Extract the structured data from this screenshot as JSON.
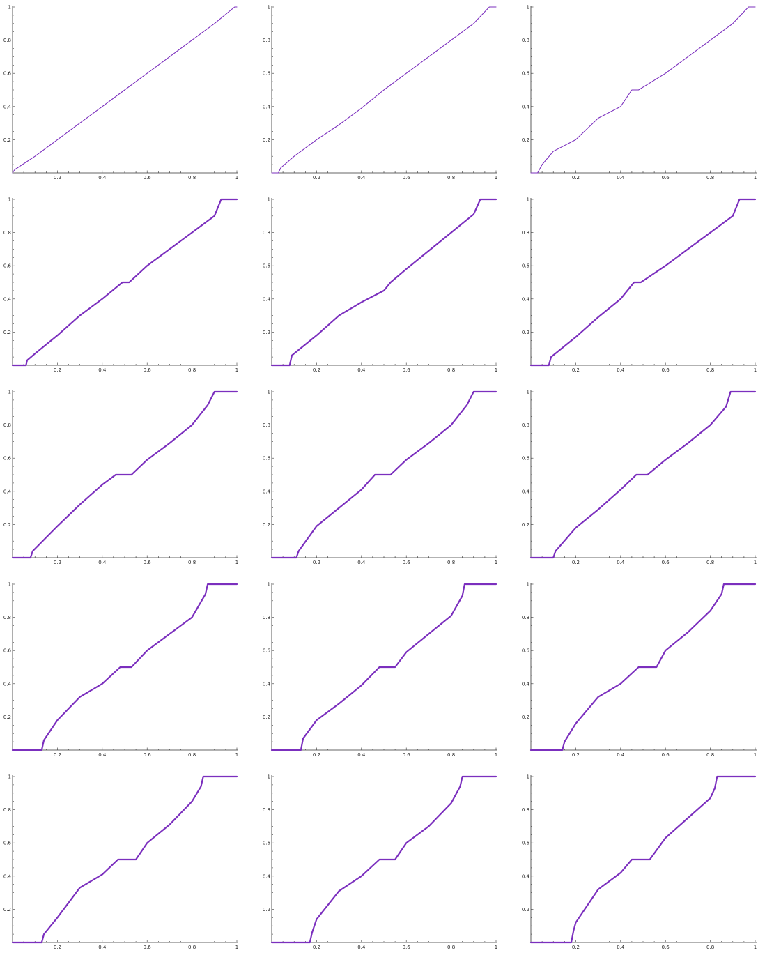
{
  "colors": {
    "line": "#7b2fbe",
    "axis": "#333333"
  },
  "chart_data": [
    {
      "type": "line",
      "xlim": [
        0,
        1
      ],
      "ylim": [
        0,
        1
      ],
      "xticks": [
        "0.2",
        "0.4",
        "0.6",
        "0.8",
        "1"
      ],
      "yticks": [
        "0.2",
        "0.4",
        "0.6",
        "0.8",
        "1"
      ],
      "grid": false,
      "x": [
        0,
        0.01,
        0.1,
        0.2,
        0.3,
        0.4,
        0.5,
        0.6,
        0.7,
        0.8,
        0.9,
        0.99,
        1
      ],
      "y": [
        0,
        0.02,
        0.1,
        0.2,
        0.3,
        0.4,
        0.5,
        0.6,
        0.7,
        0.8,
        0.9,
        1,
        1
      ]
    },
    {
      "type": "line",
      "xlim": [
        0,
        1
      ],
      "ylim": [
        0,
        1
      ],
      "xticks": [
        "0.2",
        "0.4",
        "0.6",
        "0.8",
        "1"
      ],
      "yticks": [
        "0.2",
        "0.4",
        "0.6",
        "0.8",
        "1"
      ],
      "grid": false,
      "x": [
        0,
        0.03,
        0.04,
        0.1,
        0.2,
        0.3,
        0.4,
        0.5,
        0.6,
        0.7,
        0.8,
        0.9,
        0.97,
        1
      ],
      "y": [
        0,
        0,
        0.03,
        0.1,
        0.2,
        0.29,
        0.39,
        0.5,
        0.6,
        0.7,
        0.8,
        0.9,
        1,
        1
      ]
    },
    {
      "type": "line",
      "xlim": [
        0,
        1
      ],
      "ylim": [
        0,
        1
      ],
      "xticks": [
        "0.2",
        "0.4",
        "0.6",
        "0.8",
        "1"
      ],
      "yticks": [
        "0.2",
        "0.4",
        "0.6",
        "0.8",
        "1"
      ],
      "grid": false,
      "x": [
        0,
        0.03,
        0.05,
        0.1,
        0.2,
        0.3,
        0.4,
        0.45,
        0.48,
        0.6,
        0.7,
        0.8,
        0.9,
        0.97,
        1
      ],
      "y": [
        0,
        0,
        0.05,
        0.13,
        0.2,
        0.33,
        0.4,
        0.5,
        0.5,
        0.6,
        0.7,
        0.8,
        0.9,
        1,
        1
      ]
    },
    {
      "type": "line",
      "xlim": [
        0,
        1
      ],
      "ylim": [
        0,
        1
      ],
      "xticks": [
        "0.2",
        "0.4",
        "0.6",
        "0.8",
        "1"
      ],
      "yticks": [
        "0.2",
        "0.4",
        "0.6",
        "0.8",
        "1"
      ],
      "grid": false,
      "x": [
        0,
        0.06,
        0.065,
        0.1,
        0.2,
        0.3,
        0.4,
        0.49,
        0.52,
        0.6,
        0.7,
        0.8,
        0.9,
        0.93,
        1
      ],
      "y": [
        0,
        0,
        0.03,
        0.07,
        0.18,
        0.3,
        0.4,
        0.5,
        0.5,
        0.6,
        0.7,
        0.8,
        0.9,
        1,
        1
      ]
    },
    {
      "type": "line",
      "xlim": [
        0,
        1
      ],
      "ylim": [
        0,
        1
      ],
      "xticks": [
        "0.2",
        "0.4",
        "0.6",
        "0.8",
        "1"
      ],
      "yticks": [
        "0.2",
        "0.4",
        "0.6",
        "0.8",
        "1"
      ],
      "grid": false,
      "x": [
        0,
        0.08,
        0.09,
        0.2,
        0.3,
        0.4,
        0.5,
        0.53,
        0.6,
        0.7,
        0.8,
        0.9,
        0.93,
        1
      ],
      "y": [
        0,
        0,
        0.06,
        0.18,
        0.3,
        0.38,
        0.45,
        0.5,
        0.58,
        0.69,
        0.8,
        0.91,
        1,
        1
      ]
    },
    {
      "type": "line",
      "xlim": [
        0,
        1
      ],
      "ylim": [
        0,
        1
      ],
      "xticks": [
        "0.2",
        "0.4",
        "0.6",
        "0.8",
        "1"
      ],
      "yticks": [
        "0.2",
        "0.4",
        "0.6",
        "0.8",
        "1"
      ],
      "grid": false,
      "x": [
        0,
        0.08,
        0.09,
        0.2,
        0.3,
        0.4,
        0.46,
        0.49,
        0.6,
        0.7,
        0.8,
        0.9,
        0.93,
        1
      ],
      "y": [
        0,
        0,
        0.05,
        0.17,
        0.29,
        0.4,
        0.5,
        0.5,
        0.6,
        0.7,
        0.8,
        0.9,
        1,
        1
      ]
    },
    {
      "type": "line",
      "xlim": [
        0,
        1
      ],
      "ylim": [
        0,
        1
      ],
      "xticks": [
        "0.2",
        "0.4",
        "0.6",
        "0.8",
        "1"
      ],
      "yticks": [
        "0.2",
        "0.4",
        "0.6",
        "0.8",
        "1"
      ],
      "grid": false,
      "x": [
        0,
        0.08,
        0.09,
        0.2,
        0.3,
        0.4,
        0.46,
        0.53,
        0.6,
        0.7,
        0.8,
        0.87,
        0.9,
        1
      ],
      "y": [
        0,
        0,
        0.04,
        0.19,
        0.32,
        0.44,
        0.5,
        0.5,
        0.59,
        0.69,
        0.8,
        0.92,
        1,
        1
      ]
    },
    {
      "type": "line",
      "xlim": [
        0,
        1
      ],
      "ylim": [
        0,
        1
      ],
      "xticks": [
        "0.2",
        "0.4",
        "0.6",
        "0.8",
        "1"
      ],
      "yticks": [
        "0.2",
        "0.4",
        "0.6",
        "0.8",
        "1"
      ],
      "grid": false,
      "x": [
        0,
        0.11,
        0.12,
        0.2,
        0.3,
        0.4,
        0.46,
        0.53,
        0.6,
        0.7,
        0.8,
        0.87,
        0.9,
        1
      ],
      "y": [
        0,
        0,
        0.04,
        0.19,
        0.3,
        0.41,
        0.5,
        0.5,
        0.59,
        0.69,
        0.8,
        0.92,
        1,
        1
      ]
    },
    {
      "type": "line",
      "xlim": [
        0,
        1
      ],
      "ylim": [
        0,
        1
      ],
      "xticks": [
        "0.2",
        "0.4",
        "0.6",
        "0.8",
        "1"
      ],
      "yticks": [
        "0.2",
        "0.4",
        "0.6",
        "0.8",
        "1"
      ],
      "grid": false,
      "x": [
        0,
        0.1,
        0.11,
        0.2,
        0.3,
        0.4,
        0.47,
        0.52,
        0.6,
        0.7,
        0.8,
        0.87,
        0.89,
        1
      ],
      "y": [
        0,
        0,
        0.04,
        0.18,
        0.29,
        0.41,
        0.5,
        0.5,
        0.59,
        0.69,
        0.8,
        0.91,
        1,
        1
      ]
    },
    {
      "type": "line",
      "xlim": [
        0,
        1
      ],
      "ylim": [
        0,
        1
      ],
      "xticks": [
        "0.2",
        "0.4",
        "0.6",
        "0.8",
        "1"
      ],
      "yticks": [
        "0.2",
        "0.4",
        "0.6",
        "0.8",
        "1"
      ],
      "grid": false,
      "x": [
        0,
        0.13,
        0.14,
        0.2,
        0.3,
        0.4,
        0.48,
        0.53,
        0.6,
        0.7,
        0.8,
        0.86,
        0.87,
        1
      ],
      "y": [
        0,
        0,
        0.06,
        0.18,
        0.32,
        0.4,
        0.5,
        0.5,
        0.6,
        0.7,
        0.8,
        0.94,
        1,
        1
      ]
    },
    {
      "type": "line",
      "xlim": [
        0,
        1
      ],
      "ylim": [
        0,
        1
      ],
      "xticks": [
        "0.2",
        "0.4",
        "0.6",
        "0.8",
        "1"
      ],
      "yticks": [
        "0.2",
        "0.4",
        "0.6",
        "0.8",
        "1"
      ],
      "grid": false,
      "x": [
        0,
        0.13,
        0.14,
        0.2,
        0.3,
        0.4,
        0.48,
        0.55,
        0.6,
        0.7,
        0.8,
        0.85,
        0.86,
        1
      ],
      "y": [
        0,
        0,
        0.07,
        0.18,
        0.28,
        0.39,
        0.5,
        0.5,
        0.59,
        0.7,
        0.81,
        0.93,
        1,
        1
      ]
    },
    {
      "type": "line",
      "xlim": [
        0,
        1
      ],
      "ylim": [
        0,
        1
      ],
      "xticks": [
        "0.2",
        "0.4",
        "0.6",
        "0.8",
        "1"
      ],
      "yticks": [
        "0.2",
        "0.4",
        "0.6",
        "0.8",
        "1"
      ],
      "grid": false,
      "x": [
        0,
        0.14,
        0.15,
        0.2,
        0.3,
        0.4,
        0.48,
        0.56,
        0.6,
        0.7,
        0.8,
        0.85,
        0.86,
        1
      ],
      "y": [
        0,
        0,
        0.05,
        0.16,
        0.32,
        0.4,
        0.5,
        0.5,
        0.6,
        0.71,
        0.84,
        0.94,
        1,
        1
      ]
    },
    {
      "type": "line",
      "xlim": [
        0,
        1
      ],
      "ylim": [
        0,
        1
      ],
      "xticks": [
        "0.2",
        "0.4",
        "0.6",
        "0.8",
        "1"
      ],
      "yticks": [
        "0.2",
        "0.4",
        "0.6",
        "0.8",
        "1"
      ],
      "grid": false,
      "x": [
        0,
        0.13,
        0.14,
        0.2,
        0.3,
        0.4,
        0.47,
        0.55,
        0.6,
        0.7,
        0.8,
        0.84,
        0.85,
        1
      ],
      "y": [
        0,
        0,
        0.05,
        0.15,
        0.33,
        0.41,
        0.5,
        0.5,
        0.6,
        0.71,
        0.85,
        0.94,
        1,
        1
      ]
    },
    {
      "type": "line",
      "xlim": [
        0,
        1
      ],
      "ylim": [
        0,
        1
      ],
      "xticks": [
        "0.2",
        "0.4",
        "0.6",
        "0.8",
        "1"
      ],
      "yticks": [
        "0.2",
        "0.4",
        "0.6",
        "0.8",
        "1"
      ],
      "grid": false,
      "x": [
        0,
        0.17,
        0.18,
        0.2,
        0.3,
        0.4,
        0.48,
        0.55,
        0.6,
        0.7,
        0.8,
        0.84,
        0.85,
        1
      ],
      "y": [
        0,
        0,
        0.06,
        0.14,
        0.31,
        0.4,
        0.5,
        0.5,
        0.6,
        0.7,
        0.84,
        0.94,
        1,
        1
      ]
    },
    {
      "type": "line",
      "xlim": [
        0,
        1
      ],
      "ylim": [
        0,
        1
      ],
      "xticks": [
        "0.2",
        "0.4",
        "0.6",
        "0.8",
        "1"
      ],
      "yticks": [
        "0.2",
        "0.4",
        "0.6",
        "0.8",
        "1"
      ],
      "grid": false,
      "x": [
        0,
        0.18,
        0.19,
        0.2,
        0.3,
        0.4,
        0.45,
        0.53,
        0.6,
        0.7,
        0.8,
        0.82,
        0.83,
        1
      ],
      "y": [
        0,
        0,
        0.07,
        0.12,
        0.32,
        0.42,
        0.5,
        0.5,
        0.63,
        0.75,
        0.87,
        0.93,
        1,
        1
      ]
    }
  ]
}
